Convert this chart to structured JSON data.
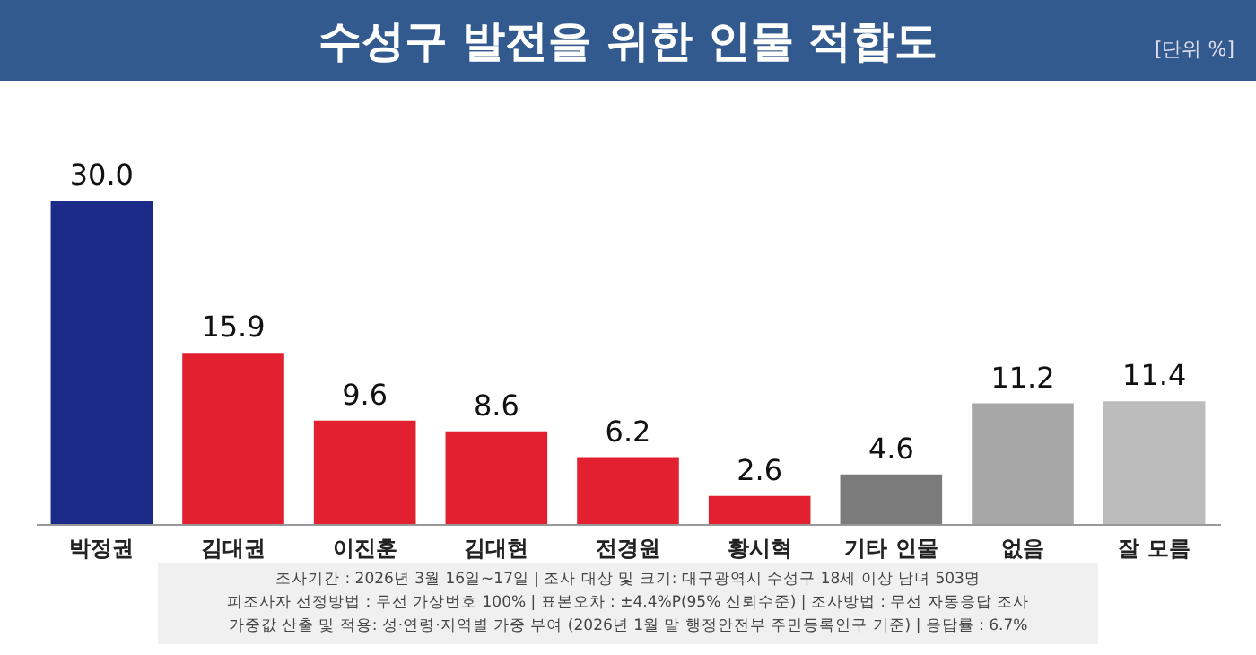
{
  "chart_data": {
    "type": "bar",
    "title": "수성구 발전을 위한 인물 적합도",
    "subtitle": "[단위 %]",
    "categories": [
      "박정권",
      "김대권",
      "이진훈",
      "김대현",
      "전경원",
      "황시혁",
      "기타 인물",
      "없음",
      "잘 모름"
    ],
    "values": [
      30.0,
      15.9,
      9.6,
      8.6,
      6.2,
      2.6,
      4.6,
      11.2,
      11.4
    ],
    "colors": [
      "#1c2a8a",
      "#e3202f",
      "#e3202f",
      "#e3202f",
      "#e3202f",
      "#e3202f",
      "#7b7b7b",
      "#a7a7a7",
      "#bcbcbc"
    ],
    "value_labels": [
      "30.0",
      "15.9",
      "9.6",
      "8.6",
      "6.2",
      "2.6",
      "4.6",
      "11.2",
      "11.4"
    ],
    "grid": false,
    "annotations": [
      "조사기간 : 2026년 3월 16일~17일 | 조사 대상 및 크기: 대구광역시 수성구 18세 이상 남녀 503명",
      "피조사자 선정방법 : 무선 가상번호 100% | 표본오차 : ±4.4%P(95% 신뢰수준) | 조사방법 : 무선 자동응답 조사",
      "가중값 산출 및 적용: 성·연령·지역별 가중 부여 (2026년 1월 말 행정안전부 주민등록인구 기준) | 응답률 : 6.7%"
    ]
  }
}
